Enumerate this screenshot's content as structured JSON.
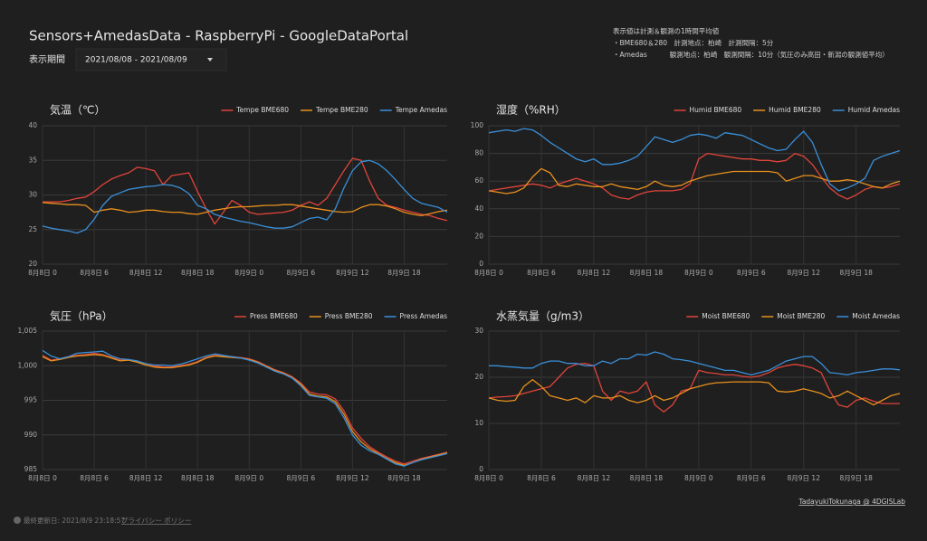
{
  "header": {
    "title": "Sensors+AmedasData - RaspberryPi - GoogleDataPortal",
    "period_label": "表示期間",
    "period_value": "2021/08/08 - 2021/08/09"
  },
  "notes": [
    "表示値は計測＆観測の1時間平均値",
    "・BME680＆280　計測地点：柏崎　計測間隔：5分",
    "・Amedas　　　 観測地点：柏崎　観測間隔：10分（気圧のみ高田・新潟の観測値平均）"
  ],
  "footer": {
    "credit": "TadayukiTokunaga @ 4DGISLab",
    "updated": "最終更新日: 2021/8/9 23:18:57",
    "privacy": "プライバシー ポリシー"
  },
  "chart_data": [
    {
      "type": "line",
      "title": "気温（℃）",
      "ylim": [
        20,
        40
      ],
      "yticks": [
        20,
        25,
        30,
        35,
        40
      ],
      "grid": true,
      "categories": [
        "8月8日 0",
        null,
        null,
        null,
        null,
        null,
        "8月8日 6",
        null,
        null,
        null,
        null,
        null,
        "8月8日 12",
        null,
        null,
        null,
        null,
        null,
        "8月8日 18",
        null,
        null,
        null,
        null,
        null,
        "8月9日 0",
        null,
        null,
        null,
        null,
        null,
        "8月9日 6",
        null,
        null,
        null,
        null,
        null,
        "8月9日 12",
        null,
        null,
        null,
        null,
        null,
        "8月9日 18",
        null,
        null,
        null,
        null,
        null
      ],
      "series": [
        {
          "name": "Tempe BME680",
          "color": "#e0443a",
          "values": [
            29,
            29,
            29,
            29.2,
            29.5,
            29.7,
            30.5,
            31.5,
            32.3,
            32.8,
            33.2,
            34,
            33.8,
            33.5,
            31.5,
            32.8,
            33,
            33.2,
            30.5,
            28,
            25.8,
            27.5,
            29.2,
            28.5,
            27.5,
            27.2,
            27.3,
            27.4,
            27.5,
            27.8,
            28.5,
            29,
            28.5,
            29.5,
            31.5,
            33.5,
            35.3,
            35,
            32,
            29.5,
            28.5,
            28.2,
            27.8,
            27.5,
            27.2,
            27,
            26.6,
            26.3
          ]
        },
        {
          "name": "Tempe BME280",
          "color": "#e8901e",
          "values": [
            28.9,
            28.8,
            28.7,
            28.6,
            28.6,
            28.5,
            27.5,
            27.8,
            28,
            27.8,
            27.5,
            27.6,
            27.8,
            27.8,
            27.6,
            27.5,
            27.5,
            27.3,
            27.2,
            27.5,
            27.8,
            28,
            28.2,
            28.3,
            28.3,
            28.4,
            28.5,
            28.5,
            28.6,
            28.6,
            28.4,
            28.2,
            28,
            27.8,
            27.6,
            27.5,
            27.6,
            28.2,
            28.6,
            28.6,
            28.4,
            28,
            27.5,
            27.2,
            27,
            27.3,
            27.6,
            27.8
          ]
        },
        {
          "name": "Tempe Amedas",
          "color": "#3a8fd8",
          "values": [
            25.5,
            25.2,
            25,
            24.8,
            24.5,
            25,
            26.5,
            28.5,
            29.8,
            30.3,
            30.8,
            31,
            31.2,
            31.3,
            31.5,
            31.4,
            31,
            30.2,
            28.5,
            28,
            27.2,
            26.8,
            26.5,
            26.2,
            26,
            25.7,
            25.4,
            25.2,
            25.2,
            25.4,
            26,
            26.6,
            26.8,
            26.4,
            28,
            31,
            33.5,
            34.8,
            35,
            34.5,
            33.5,
            32.2,
            30.8,
            29.5,
            28.8,
            28.5,
            28.2,
            27.5
          ]
        }
      ]
    },
    {
      "type": "line",
      "title": "湿度（%RH）",
      "ylim": [
        0,
        100
      ],
      "yticks": [
        0,
        20,
        40,
        60,
        80,
        100
      ],
      "grid": true,
      "categories": [
        "8月8日 0",
        null,
        null,
        null,
        null,
        null,
        "8月8日 6",
        null,
        null,
        null,
        null,
        null,
        "8月8日 12",
        null,
        null,
        null,
        null,
        null,
        "8月8日 18",
        null,
        null,
        null,
        null,
        null,
        "8月9日 0",
        null,
        null,
        null,
        null,
        null,
        "8月9日 6",
        null,
        null,
        null,
        null,
        null,
        "8月9日 12",
        null,
        null,
        null,
        null,
        null,
        "8月9日 18",
        null,
        null,
        null,
        null,
        null
      ],
      "series": [
        {
          "name": "Humid BME680",
          "color": "#e0443a",
          "values": [
            53,
            54,
            55,
            56,
            57,
            58,
            57,
            55,
            58,
            60,
            62,
            60,
            58,
            55,
            50,
            48,
            47,
            50,
            52,
            53,
            53,
            53,
            54,
            58,
            76,
            80,
            79,
            78,
            77,
            76,
            76,
            75,
            75,
            74,
            75,
            80,
            78,
            72,
            63,
            55,
            50,
            47,
            50,
            54,
            56,
            55,
            56,
            58
          ]
        },
        {
          "name": "Humid BME280",
          "color": "#e8901e",
          "values": [
            53,
            52,
            51,
            52,
            55,
            63,
            69,
            66,
            57,
            56,
            58,
            57,
            56,
            56,
            58,
            56,
            55,
            54,
            56,
            60,
            57,
            56,
            57,
            60,
            62,
            64,
            65,
            66,
            67,
            67,
            67,
            67,
            67,
            66,
            60,
            62,
            64,
            64,
            62,
            60,
            60,
            61,
            60,
            58,
            56,
            55,
            58,
            60
          ]
        },
        {
          "name": "Humid Amedas",
          "color": "#3a8fd8",
          "values": [
            95,
            96,
            97,
            96,
            98,
            97,
            93,
            88,
            84,
            80,
            76,
            74,
            76,
            72,
            72,
            73,
            75,
            78,
            85,
            92,
            90,
            88,
            90,
            93,
            94,
            93,
            91,
            95,
            94,
            93,
            90,
            87,
            84,
            82,
            83,
            90,
            96,
            88,
            72,
            58,
            53,
            55,
            58,
            62,
            75,
            78,
            80,
            82
          ]
        }
      ]
    },
    {
      "type": "line",
      "title": "気圧（hPa）",
      "ylim": [
        985,
        1005
      ],
      "yticks": [
        985,
        990,
        995,
        {
          "value": 1000,
          "label": "1,000"
        },
        {
          "value": 1005,
          "label": "1,005"
        }
      ],
      "grid": true,
      "categories": [
        "8月8日 0",
        null,
        null,
        null,
        null,
        null,
        "8月8日 6",
        null,
        null,
        null,
        null,
        null,
        "8月8日 12",
        null,
        null,
        null,
        null,
        null,
        "8月8日 18",
        null,
        null,
        null,
        null,
        null,
        "8月9日 0",
        null,
        null,
        null,
        null,
        null,
        "8月9日 6",
        null,
        null,
        null,
        null,
        null,
        "8月9日 12",
        null,
        null,
        null,
        null,
        null,
        "8月9日 18",
        null,
        null,
        null,
        null,
        null
      ],
      "series": [
        {
          "name": "Press BME680",
          "color": "#e0443a",
          "values": [
            1001.5,
            1000.8,
            1001,
            1001.3,
            1001.5,
            1001.6,
            1001.8,
            1001.6,
            1001.2,
            1000.8,
            1000.9,
            1000.6,
            1000.3,
            1000,
            999.8,
            999.8,
            1000,
            1000.2,
            1000.6,
            1001.2,
            1001.5,
            1001.4,
            1001.3,
            1001.2,
            1001,
            1000.6,
            1000,
            999.4,
            999,
            998.4,
            997.5,
            996.2,
            995.9,
            995.8,
            995.2,
            993.5,
            991,
            989.5,
            988.3,
            987.5,
            986.8,
            986.2,
            985.8,
            986.2,
            986.6,
            986.9,
            987.2,
            987.5
          ]
        },
        {
          "name": "Press BME280",
          "color": "#e8901e",
          "values": [
            1001.3,
            1000.7,
            1000.9,
            1001.2,
            1001.4,
            1001.5,
            1001.6,
            1001.5,
            1001.1,
            1000.7,
            1000.8,
            1000.5,
            1000.1,
            999.8,
            999.7,
            999.7,
            999.9,
            1000.1,
            1000.5,
            1001.1,
            1001.4,
            1001.3,
            1001.2,
            1001.1,
            1000.9,
            1000.5,
            999.9,
            999.3,
            998.9,
            998.3,
            997.3,
            995.9,
            995.6,
            995.5,
            994.8,
            993,
            990.5,
            989,
            988,
            987.3,
            986.6,
            986,
            985.6,
            986,
            986.5,
            986.8,
            987.1,
            987.4
          ]
        },
        {
          "name": "Press Amedas",
          "color": "#3a8fd8",
          "values": [
            1002.2,
            1001.4,
            1001,
            1001.3,
            1001.8,
            1001.9,
            1002,
            1002.1,
            1001.4,
            1001,
            1000.9,
            1000.7,
            1000.3,
            1000.1,
            1000.1,
            1000,
            1000.2,
            1000.6,
            1001,
            1001.4,
            1001.7,
            1001.5,
            1001.3,
            1001.1,
            1000.8,
            1000.4,
            999.8,
            999.2,
            998.8,
            998.2,
            997.1,
            995.7,
            995.5,
            995.3,
            994.5,
            992.5,
            990,
            988.5,
            987.7,
            987.2,
            986.5,
            985.8,
            985.5,
            986,
            986.4,
            986.7,
            987,
            987.3
          ]
        }
      ]
    },
    {
      "type": "line",
      "title": "水蒸気量（g/m3）",
      "ylim": [
        0,
        30
      ],
      "yticks": [
        0,
        10,
        20,
        30
      ],
      "grid": true,
      "categories": [
        "8月8日 0",
        null,
        null,
        null,
        null,
        null,
        "8月8日 6",
        null,
        null,
        null,
        null,
        null,
        "8月8日 12",
        null,
        null,
        null,
        null,
        null,
        "8月8日 18",
        null,
        null,
        null,
        null,
        null,
        "8月9日 0",
        null,
        null,
        null,
        null,
        null,
        "8月9日 6",
        null,
        null,
        null,
        null,
        null,
        "8月9日 12",
        null,
        null,
        null,
        null,
        null,
        "8月9日 18",
        null,
        null,
        null,
        null,
        null
      ],
      "series": [
        {
          "name": "Moist BME680",
          "color": "#e0443a",
          "values": [
            15.5,
            15.7,
            15.8,
            16,
            16.5,
            17,
            17.5,
            18,
            20,
            22,
            22.8,
            23,
            22.5,
            17,
            15,
            17,
            16.5,
            17,
            19,
            14,
            12.5,
            14,
            17,
            17.5,
            21.5,
            21,
            20.8,
            20.5,
            20.5,
            20.2,
            20,
            20.3,
            21,
            22,
            22.5,
            22.8,
            22.5,
            22,
            21,
            17,
            14,
            13.5,
            15,
            15.5,
            14.8,
            14.3,
            14.3,
            14.3
          ]
        },
        {
          "name": "Moist BME280",
          "color": "#e8901e",
          "values": [
            15.5,
            15,
            14.8,
            15,
            18,
            19.5,
            18,
            16,
            15.5,
            15,
            15.5,
            14.5,
            16,
            15.5,
            15.5,
            16,
            15,
            14.5,
            15,
            16,
            15,
            15.5,
            16.5,
            17.5,
            18,
            18.5,
            18.8,
            18.9,
            19,
            19,
            19,
            19,
            18.8,
            17,
            16.8,
            17,
            17.5,
            17,
            16.5,
            15.5,
            16,
            17,
            16,
            15,
            14,
            15,
            16,
            16.5
          ]
        },
        {
          "name": "Moist Amedas",
          "color": "#3a8fd8",
          "values": [
            22.5,
            22.5,
            22.3,
            22.2,
            22,
            22,
            23,
            23.5,
            23.5,
            23,
            23,
            22.5,
            22.5,
            23.5,
            23,
            24,
            24,
            25,
            24.8,
            25.5,
            25,
            24,
            23.8,
            23.5,
            23,
            22.5,
            22,
            21.5,
            21.5,
            21,
            20.5,
            21,
            21.5,
            22.5,
            23.5,
            24,
            24.5,
            24.5,
            23,
            21,
            20.8,
            20.5,
            21,
            21.2,
            21.5,
            21.8,
            21.8,
            21.6
          ]
        }
      ]
    }
  ]
}
